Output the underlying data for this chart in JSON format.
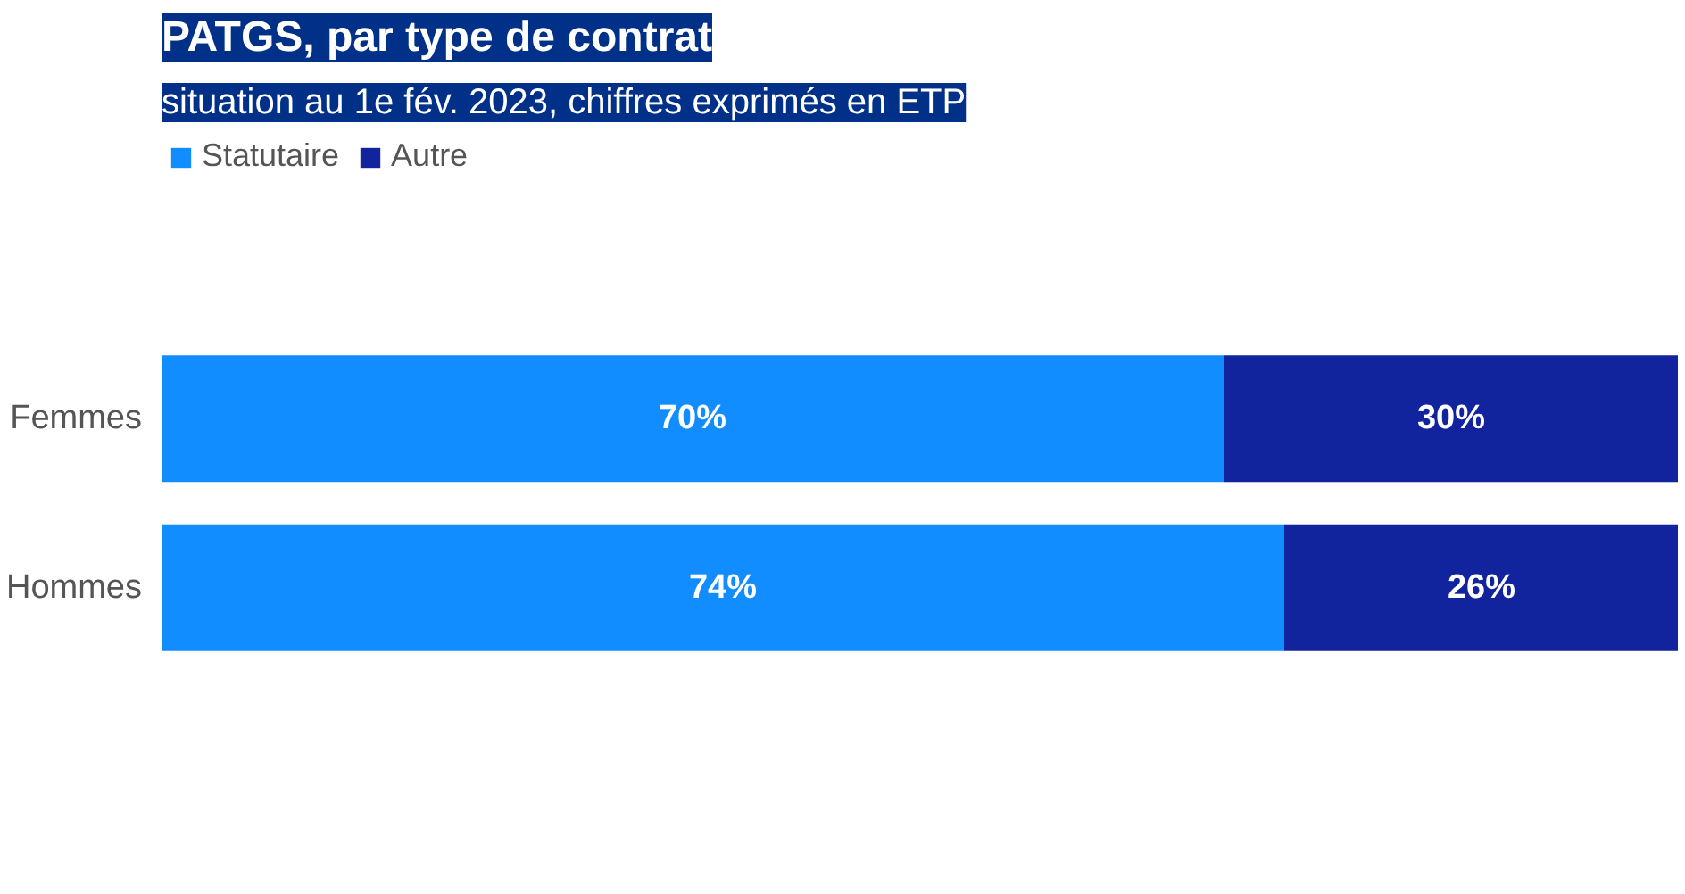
{
  "chart_data": {
    "type": "bar",
    "orientation": "horizontal",
    "stacked": true,
    "title": "PATGS, par type de contrat",
    "subtitle": "situation au 1e fév. 2023, chiffres exprimés en ETP",
    "categories": [
      "Femmes",
      "Hommes"
    ],
    "series": [
      {
        "name": "Statutaire",
        "color": "#118dff",
        "values": [
          70,
          74
        ],
        "value_labels": [
          "70%",
          "74%"
        ]
      },
      {
        "name": "Autre",
        "color": "#12239e",
        "values": [
          30,
          26
        ],
        "value_labels": [
          "30%",
          "26%"
        ]
      }
    ],
    "legend": "top left",
    "tick_labels": "y",
    "grid": false
  }
}
